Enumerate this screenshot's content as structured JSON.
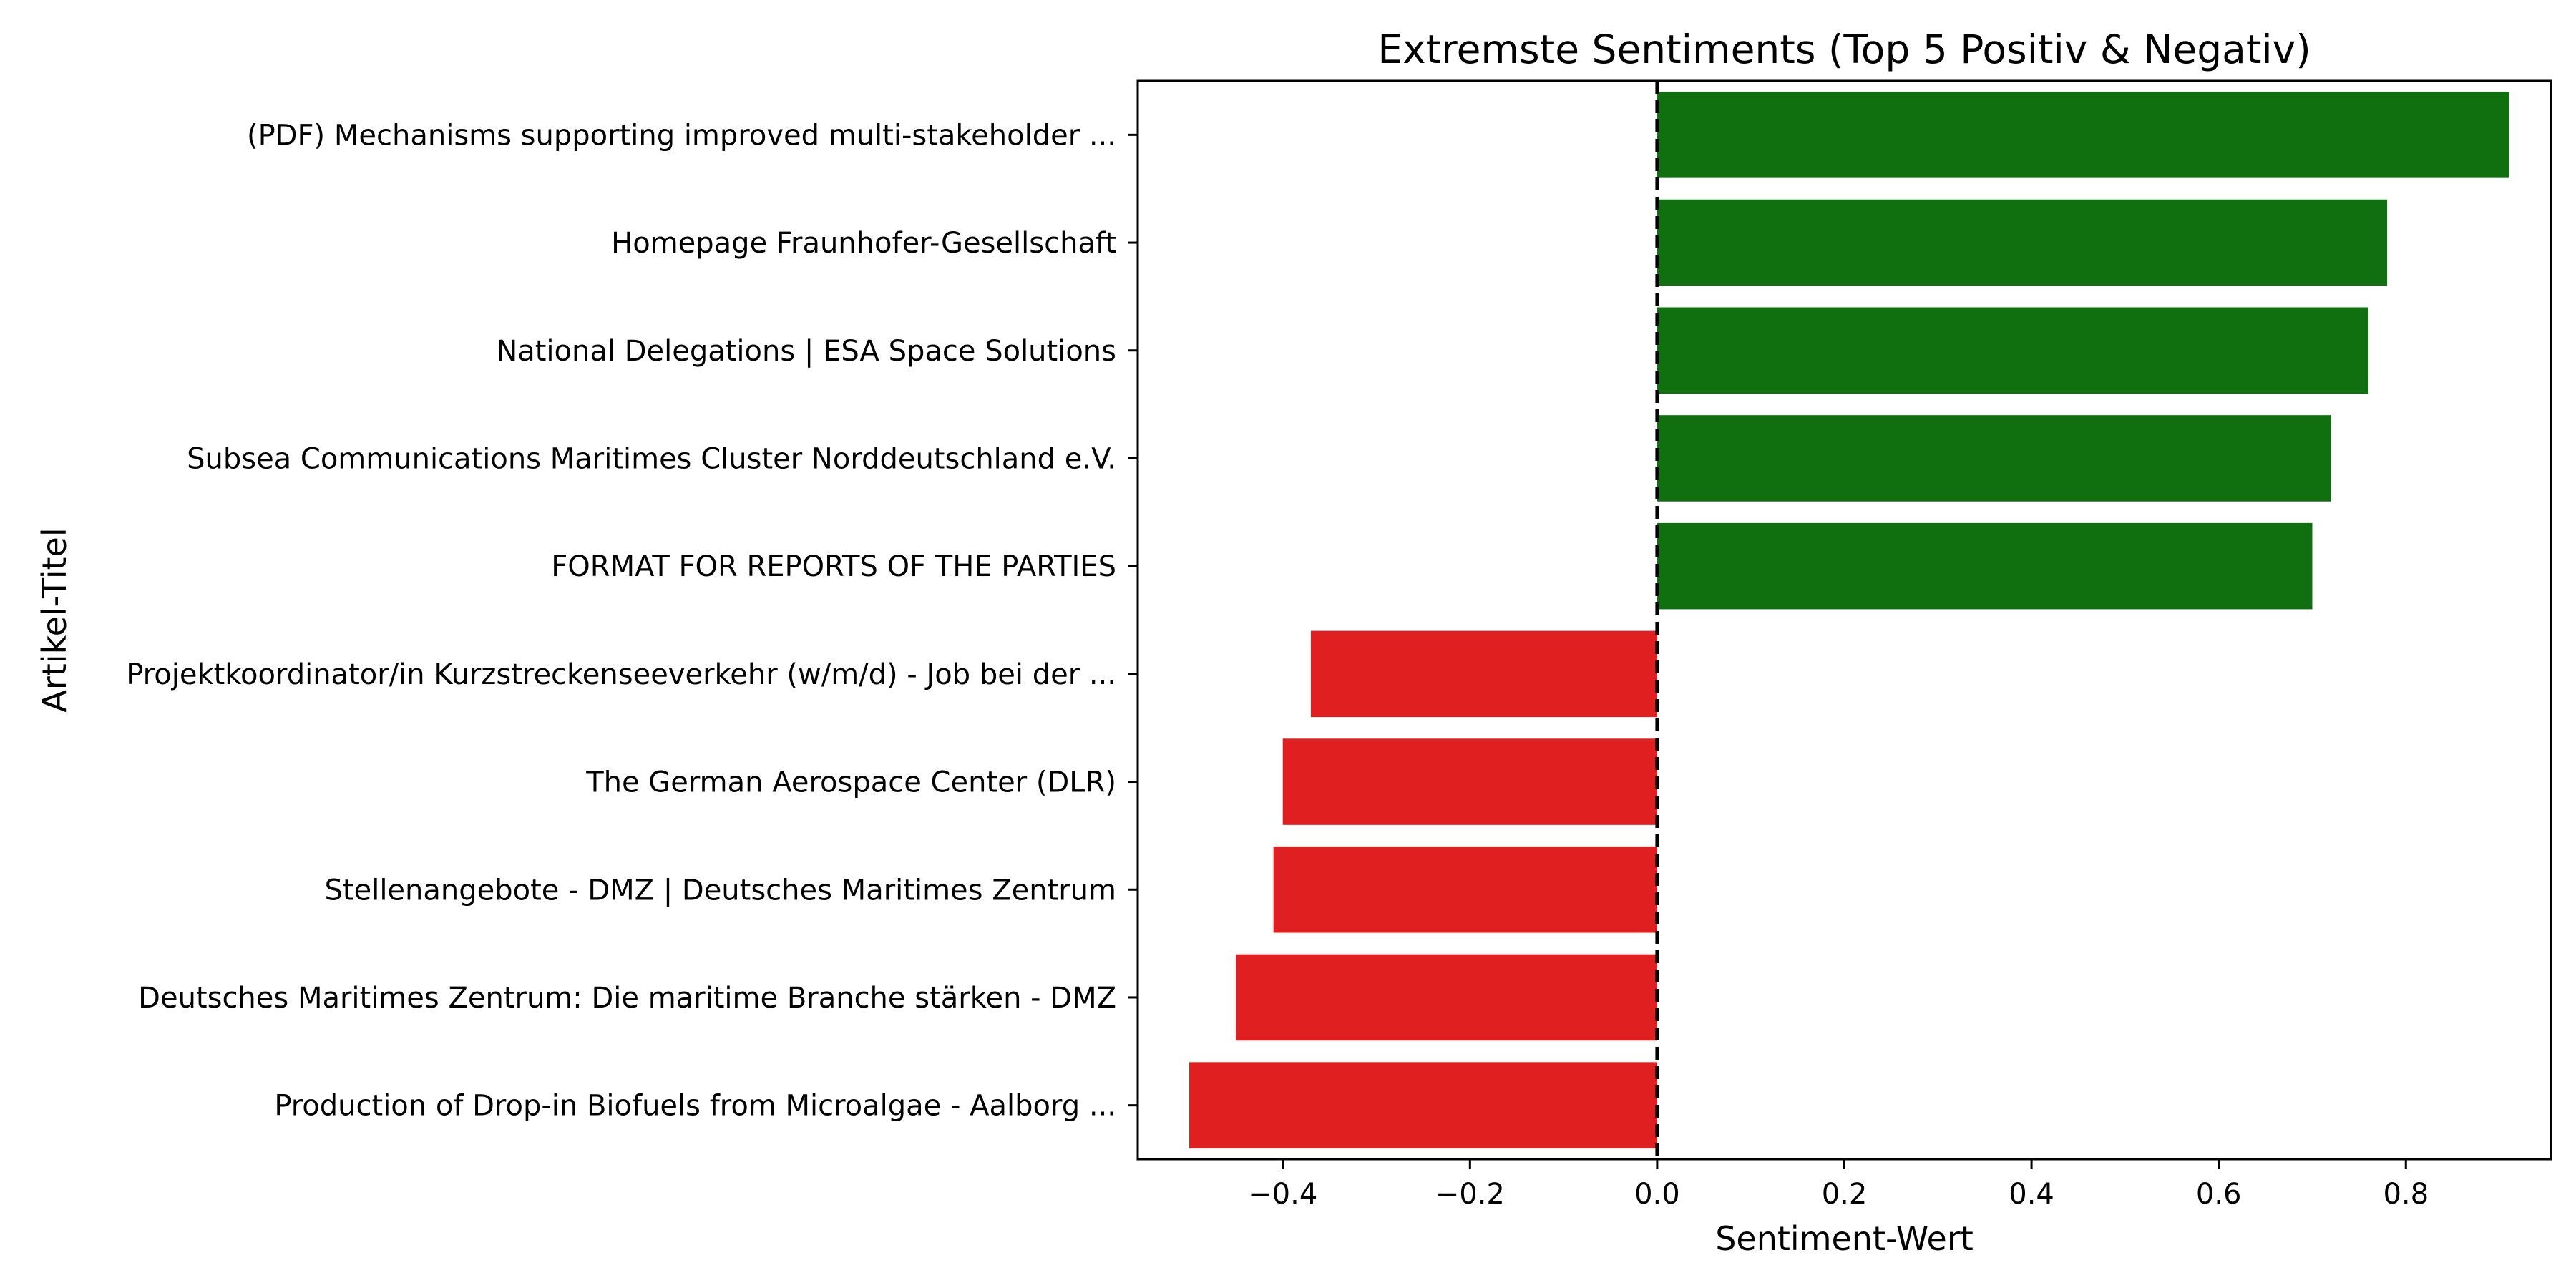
{
  "chart_data": {
    "type": "bar",
    "orientation": "horizontal",
    "title": "Extremste Sentiments (Top 5 Positiv & Negativ)",
    "xlabel": "Sentiment-Wert",
    "ylabel": "Artikel-Titel",
    "xlim": [
      -0.555,
      0.955
    ],
    "xticks": [
      -0.4,
      -0.2,
      0.0,
      0.2,
      0.4,
      0.6,
      0.8
    ],
    "xtick_labels": [
      "−0.4",
      "−0.2",
      "0.0",
      "0.2",
      "0.4",
      "0.6",
      "0.8"
    ],
    "zero_line": {
      "x": 0,
      "style": "dashed",
      "color": "#000000"
    },
    "grid": false,
    "legend": "none",
    "colors": {
      "positive": "#107010",
      "negative": "#e02020"
    },
    "categories": [
      "(PDF) Mechanisms supporting improved multi-stakeholder ...",
      "Homepage Fraunhofer-Gesellschaft",
      "National Delegations | ESA Space Solutions",
      "Subsea Communications Maritimes Cluster Norddeutschland e.V.",
      "FORMAT FOR REPORTS OF THE PARTIES",
      "Projektkoordinator/in Kurzstreckenseeverkehr (w/m/d) - Job bei der ...",
      "The German Aerospace Center (DLR)",
      "Stellenangebote - DMZ | Deutsches Maritimes Zentrum",
      "Deutsches Maritimes Zentrum: Die maritime Branche stärken - DMZ",
      "Production of Drop-in Biofuels from Microalgae - Aalborg ..."
    ],
    "values": [
      0.91,
      0.78,
      0.76,
      0.72,
      0.7,
      -0.37,
      -0.4,
      -0.41,
      -0.45,
      -0.5
    ]
  }
}
